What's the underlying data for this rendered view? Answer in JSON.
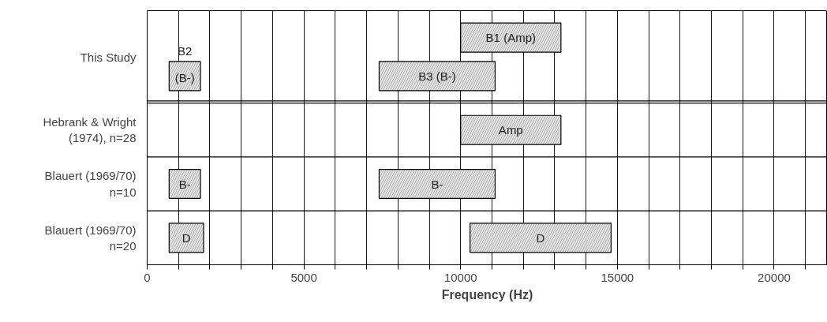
{
  "chart_data": {
    "type": "bar",
    "orientation": "horizontal",
    "xlabel": "Frequency (Hz)",
    "categories": [
      "This Study",
      "Hebrank & Wright\n(1974), n=28",
      "Blauert (1969/70)\nn=10",
      "Blauert (1969/70)\nn=20"
    ],
    "xlim": [
      0,
      21700
    ],
    "xticks": [
      0,
      {
        "value": 1000,
        "label": null
      },
      {
        "value": 2000,
        "label": null
      },
      {
        "value": 3000,
        "label": null
      },
      {
        "value": 4000,
        "label": null
      },
      5000,
      {
        "value": 6000,
        "label": null
      },
      {
        "value": 7000,
        "label": null
      },
      {
        "value": 8000,
        "label": null
      },
      {
        "value": 9000,
        "label": null
      },
      10000,
      {
        "value": 11000,
        "label": null
      },
      {
        "value": 12000,
        "label": null
      },
      {
        "value": 13000,
        "label": null
      },
      {
        "value": 14000,
        "label": null
      },
      15000,
      {
        "value": 16000,
        "label": null
      },
      {
        "value": 17000,
        "label": null
      },
      {
        "value": 18000,
        "label": null
      },
      {
        "value": 19000,
        "label": null
      },
      20000,
      {
        "value": 21000,
        "label": null
      }
    ],
    "grid": "x",
    "stacked": false,
    "series": [
      {
        "color": "#e6e6e6",
        "base": [
          10000,
          10000,
          null,
          null
        ],
        "values": [
          3200,
          3200,
          null,
          null
        ],
        "value_labels": [
          "B1 (Amp)",
          "Amp",
          null,
          null
        ]
      },
      {
        "color": "#e6e6e6",
        "base": [
          700,
          null,
          700,
          700
        ],
        "values": [
          1000,
          null,
          1000,
          1100
        ],
        "value_labels": [
          "B2\n(B-)",
          null,
          "B-",
          "D"
        ]
      },
      {
        "color": "#e6e6e6",
        "base": [
          7400,
          null,
          7400,
          10300
        ],
        "values": [
          3700,
          null,
          3700,
          4500
        ],
        "value_labels": [
          "B3 (B-)",
          null,
          "B-",
          "D"
        ]
      }
    ]
  }
}
